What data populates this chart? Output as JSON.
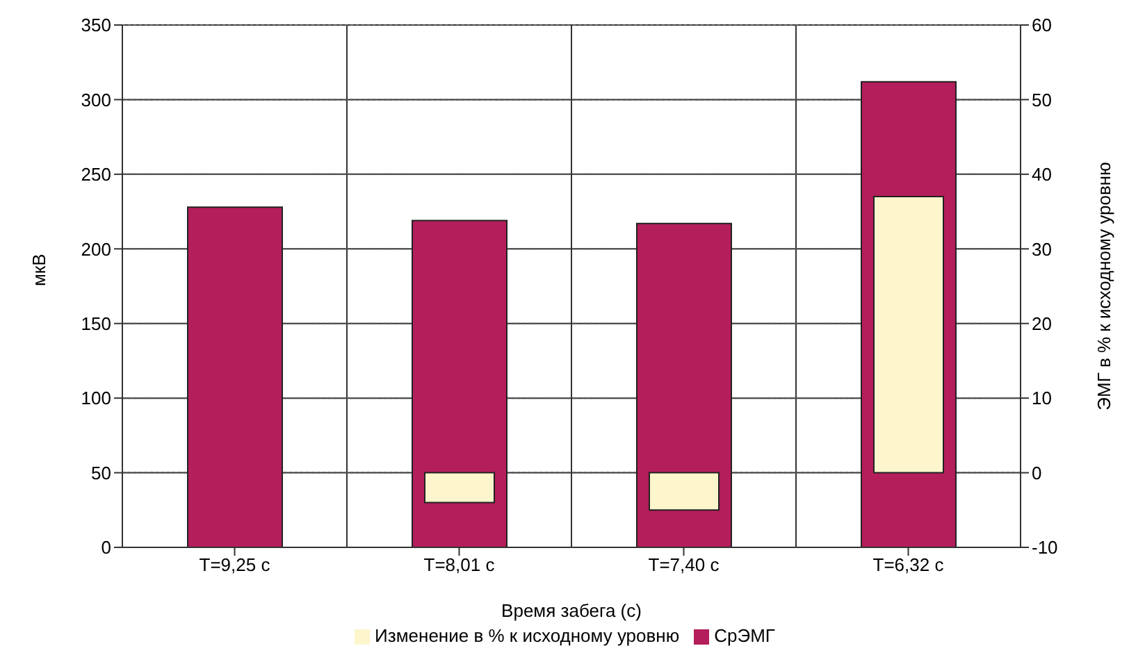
{
  "chart_data": {
    "type": "bar",
    "xlabel": "Время забега (с)",
    "ylabel": "мкВ",
    "y2label": "ЭМГ в % к исходному уровню",
    "categories": [
      "T=9,25 с",
      "T=8,01 с",
      "T=7,40 с",
      "T=6,32 с"
    ],
    "series": [
      {
        "name": "СрЭМГ",
        "color": "#b41e5a",
        "values": [
          228,
          219,
          217,
          312
        ]
      },
      {
        "name": "Изменение в % к исходному уровню",
        "color": "#fdf6cc",
        "values": [
          0,
          -4,
          -5,
          37
        ],
        "axis": "y2"
      }
    ],
    "ylim": [
      0,
      350
    ],
    "yticks": [
      0,
      50,
      100,
      150,
      200,
      250,
      300,
      350
    ],
    "y2lim": [
      -10,
      60
    ],
    "y2ticks": [
      -10,
      0,
      10,
      20,
      30,
      40,
      50,
      60
    ],
    "grid": true,
    "legend": "bottom"
  }
}
